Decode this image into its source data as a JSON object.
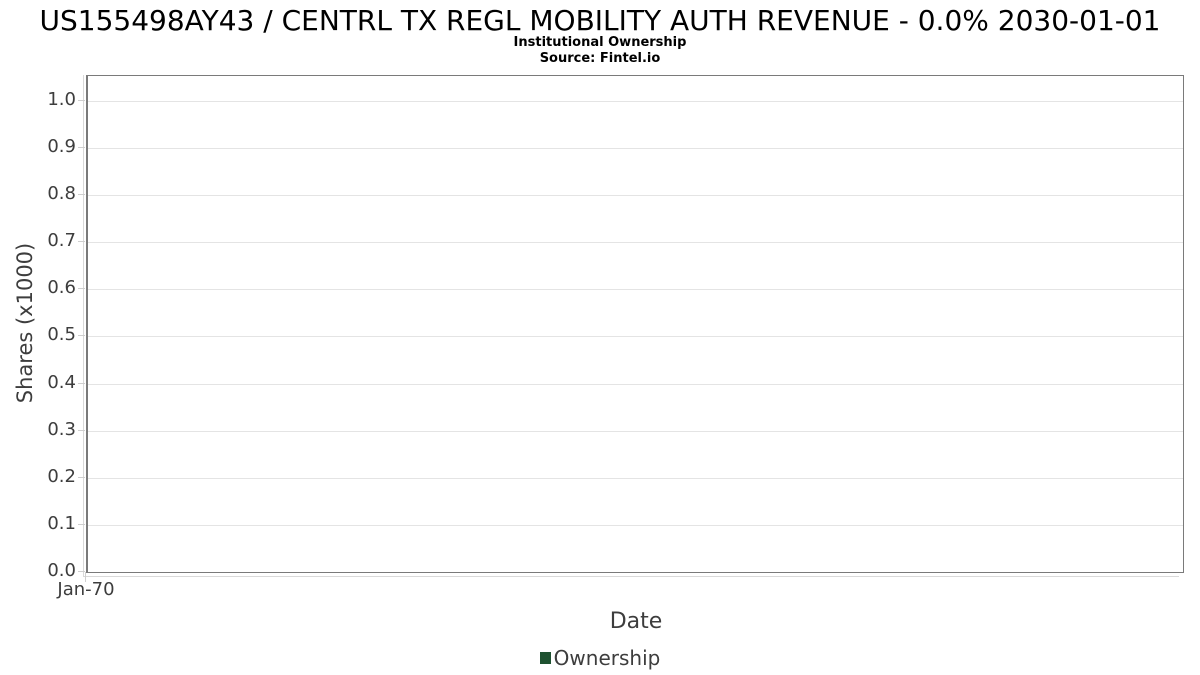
{
  "page": {
    "title": "US155498AY43 / CENTRL TX REGL MOBILITY AUTH REVENUE - 0.0% 2030-01-01",
    "subtitle": "Institutional Ownership",
    "source": "Source: Fintel.io"
  },
  "chart_data": {
    "type": "line",
    "title": "US155498AY43 / CENTRL TX REGL MOBILITY AUTH REVENUE - 0.0% 2030-01-01",
    "subtitle": "Institutional Ownership",
    "source": "Source: Fintel.io",
    "xlabel": "Date",
    "ylabel": "Shares (x1000)",
    "x_ticks": [
      "Jan-70"
    ],
    "y_ticks": [
      0.0,
      0.1,
      0.2,
      0.3,
      0.4,
      0.5,
      0.6,
      0.7,
      0.8,
      0.9,
      1.0
    ],
    "ylim": [
      0,
      1.053
    ],
    "grid": "horizontal",
    "legend_position": "bottom-center",
    "series": [
      {
        "name": "Ownership",
        "color": "#1e5130",
        "x": [],
        "values": []
      }
    ]
  },
  "colors": {
    "legend_marker": "#1e5130",
    "frame": "#7a7a7a",
    "gridline": "#e4e4e4",
    "tick": "#cfcfcf",
    "axis_text": "#3d3d3d",
    "title_text": "#000000"
  }
}
